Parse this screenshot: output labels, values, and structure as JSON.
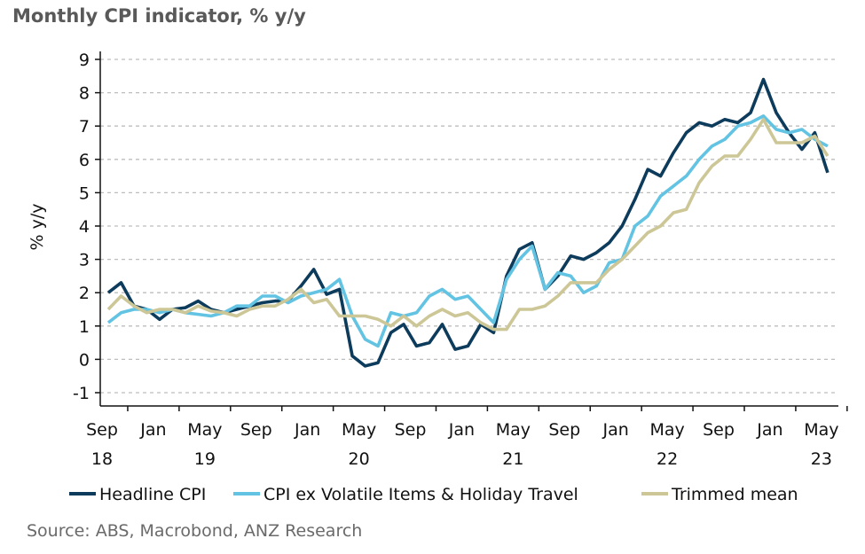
{
  "chart_data": {
    "type": "line",
    "title": "Monthly CPI indicator, % y/y",
    "ylabel": "% y/y",
    "xlabel": "",
    "ylim": [
      -1,
      9
    ],
    "yticks": [
      "-1",
      "0",
      "1",
      "2",
      "3",
      "4",
      "5",
      "6",
      "7",
      "8",
      "9"
    ],
    "grid": true,
    "legend_position": "bottom",
    "x_start": "Sep 2018",
    "x_end": "May 2023",
    "x_frequency": "monthly",
    "xtick_months": [
      "Sep",
      "Jan",
      "May",
      "Sep",
      "Jan",
      "May",
      "Sep",
      "Jan",
      "May",
      "Sep",
      "Jan",
      "May",
      "Sep",
      "Jan",
      "May"
    ],
    "xtick_years": [
      {
        "under": 0,
        "label": "18"
      },
      {
        "under": 2,
        "label": "19"
      },
      {
        "under": 5,
        "label": "20"
      },
      {
        "under": 8,
        "label": "21"
      },
      {
        "under": 11,
        "label": "22"
      },
      {
        "under": 14,
        "label": "23"
      }
    ],
    "series": [
      {
        "name": "Headline CPI",
        "color": "#0d3b5c",
        "values": [
          2.0,
          2.3,
          1.6,
          1.5,
          1.2,
          1.5,
          1.55,
          1.75,
          1.5,
          1.4,
          1.5,
          1.6,
          1.7,
          1.75,
          1.75,
          2.2,
          2.7,
          1.95,
          2.1,
          0.1,
          -0.2,
          -0.1,
          0.8,
          1.05,
          0.4,
          0.5,
          1.05,
          0.3,
          0.4,
          1.05,
          0.8,
          2.5,
          3.3,
          3.5,
          2.1,
          2.5,
          3.1,
          3.0,
          3.2,
          3.5,
          4.0,
          4.8,
          5.7,
          5.5,
          6.2,
          6.8,
          7.1,
          7.0,
          7.2,
          7.1,
          7.4,
          8.4,
          7.4,
          6.8,
          6.3,
          6.8,
          5.6
        ]
      },
      {
        "name": "CPI ex Volatile Items & Holiday Travel",
        "color": "#62c3e2",
        "values": [
          1.1,
          1.4,
          1.5,
          1.5,
          1.4,
          1.5,
          1.4,
          1.35,
          1.3,
          1.4,
          1.6,
          1.6,
          1.9,
          1.9,
          1.7,
          1.9,
          2.0,
          2.1,
          2.4,
          1.3,
          0.6,
          0.4,
          1.4,
          1.3,
          1.4,
          1.9,
          2.1,
          1.8,
          1.9,
          1.5,
          1.1,
          2.4,
          3.0,
          3.4,
          2.1,
          2.6,
          2.5,
          2.0,
          2.2,
          2.9,
          3.0,
          4.0,
          4.3,
          4.9,
          5.2,
          5.5,
          6.0,
          6.4,
          6.6,
          7.0,
          7.1,
          7.3,
          6.9,
          6.8,
          6.9,
          6.6,
          6.4
        ]
      },
      {
        "name": "Trimmed mean",
        "color": "#cdc797",
        "values": [
          1.5,
          1.9,
          1.6,
          1.4,
          1.5,
          1.5,
          1.4,
          1.6,
          1.45,
          1.4,
          1.3,
          1.5,
          1.6,
          1.6,
          1.8,
          2.1,
          1.7,
          1.8,
          1.3,
          1.3,
          1.3,
          1.2,
          1.0,
          1.3,
          1.0,
          1.3,
          1.5,
          1.3,
          1.4,
          1.1,
          0.9,
          0.9,
          1.5,
          1.5,
          1.6,
          1.9,
          2.3,
          2.3,
          2.3,
          2.7,
          3.0,
          3.4,
          3.8,
          4.0,
          4.4,
          4.5,
          5.3,
          5.8,
          6.1,
          6.1,
          6.6,
          7.2,
          6.5,
          6.5,
          6.5,
          6.7,
          6.1
        ]
      }
    ]
  },
  "source": "Source: ABS, Macrobond, ANZ Research"
}
